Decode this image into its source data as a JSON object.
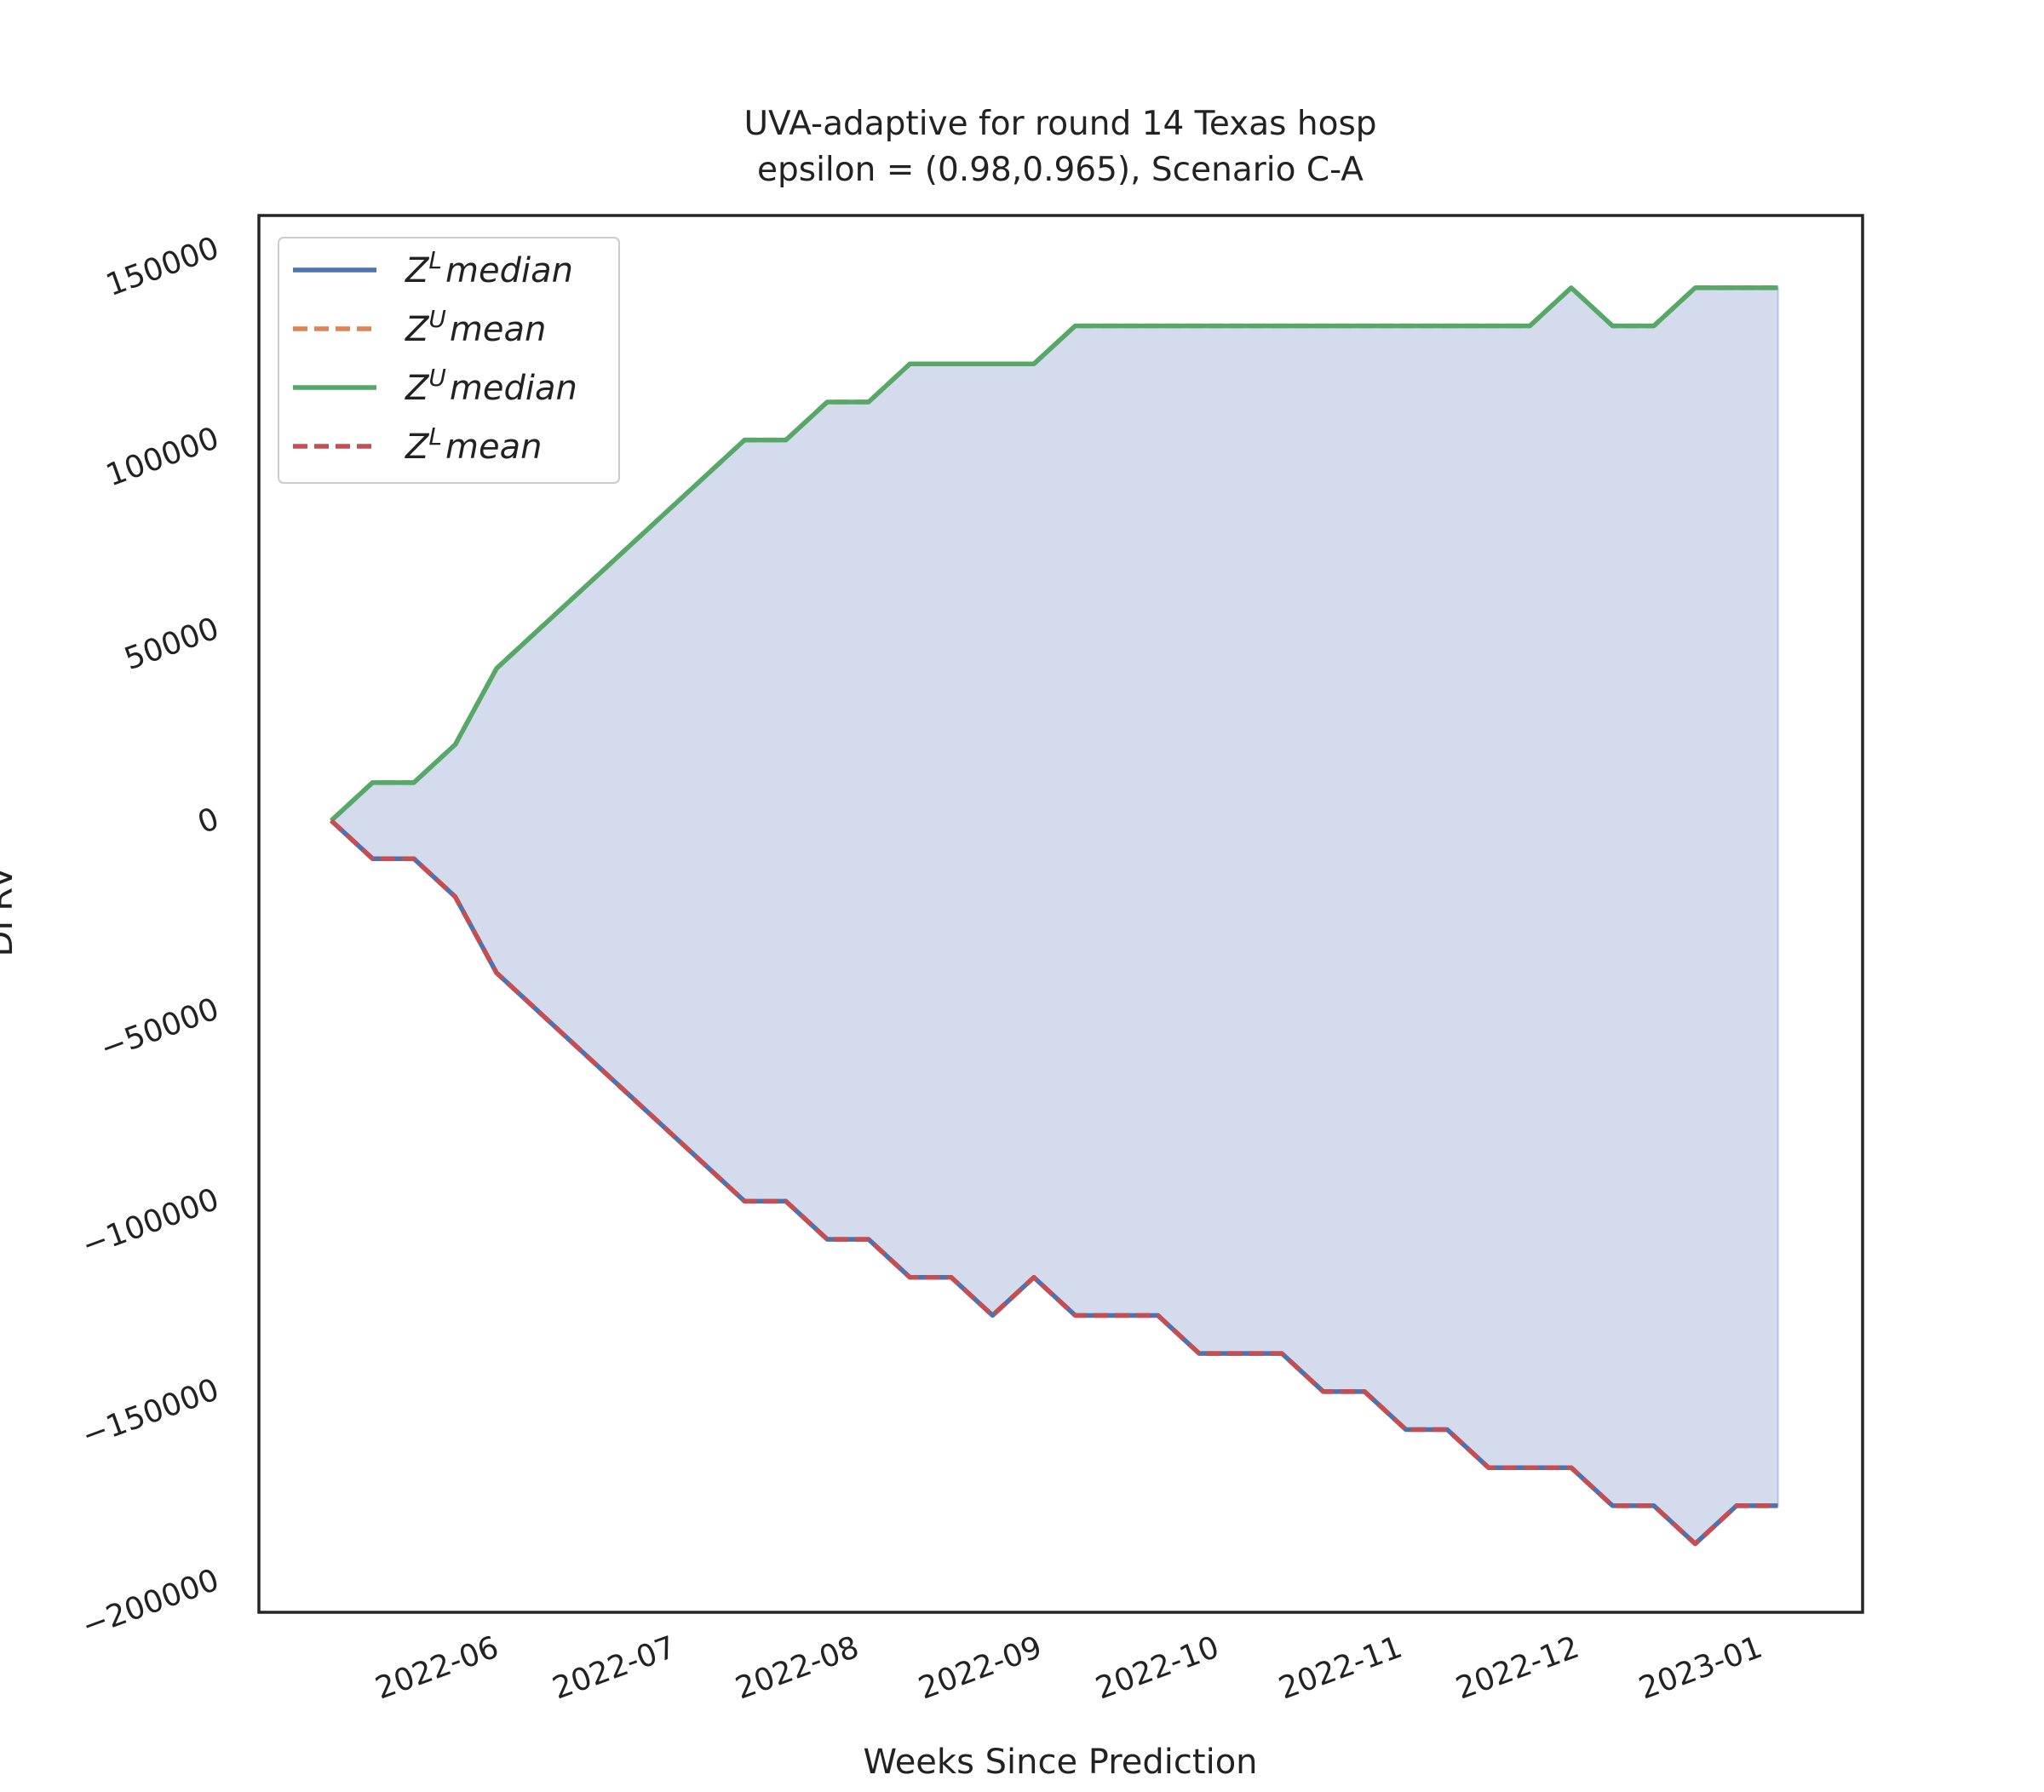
{
  "chart_data": {
    "type": "line",
    "title": "UVA-adaptive for round 14 Texas  hosp",
    "subtitle": "epsilon = (0.98,0.965), Scenario C-A",
    "xlabel": "Weeks Since Prediction",
    "ylabel": "DFRV",
    "x": [
      0,
      1,
      2,
      3,
      4,
      5,
      6,
      7,
      8,
      9,
      10,
      11,
      12,
      13,
      14,
      15,
      16,
      17,
      18,
      19,
      20,
      21,
      22,
      23,
      24,
      25,
      26,
      27,
      28,
      29,
      30,
      31,
      32,
      33,
      34,
      35
    ],
    "xlim": [
      -1.75,
      37.05
    ],
    "xticks": [
      {
        "value": 2.571,
        "label": "2022-06"
      },
      {
        "value": 6.857,
        "label": "2022-07"
      },
      {
        "value": 11.286,
        "label": "2022-08"
      },
      {
        "value": 15.714,
        "label": "2022-09"
      },
      {
        "value": 20,
        "label": "2022-10"
      },
      {
        "value": 24.429,
        "label": "2022-11"
      },
      {
        "value": 28.714,
        "label": "2022-12"
      },
      {
        "value": 33.143,
        "label": "2023-01"
      }
    ],
    "ylim": [
      -208000,
      159000
    ],
    "yticks": [
      {
        "value": -200000,
        "label": "−200000"
      },
      {
        "value": -150000,
        "label": "−150000"
      },
      {
        "value": -100000,
        "label": "−100000"
      },
      {
        "value": -50000,
        "label": "−50000"
      },
      0,
      50000,
      100000,
      150000
    ],
    "grid": false,
    "legend": "upper left",
    "fill_between": {
      "upper": 2,
      "lower": 0,
      "color": "#d3dbec"
    },
    "series": [
      {
        "name": "ZLmedian",
        "color": "#4c72b0",
        "dash": false,
        "values": [
          0,
          -10000,
          -10000,
          -20000,
          -40000,
          -50000,
          -60000,
          -70000,
          -80000,
          -90000,
          -100000,
          -100000,
          -110000,
          -110000,
          -120000,
          -120000,
          -130000,
          -120000,
          -130000,
          -130000,
          -130000,
          -140000,
          -140000,
          -140000,
          -150000,
          -150000,
          -160000,
          -160000,
          -170000,
          -170000,
          -170000,
          -180000,
          -180000,
          -190000,
          -180000,
          -180000
        ]
      },
      {
        "name": "ZUmean",
        "color": "#dd8452",
        "dash": true,
        "values": [
          0,
          10000,
          10000,
          20000,
          40000,
          50000,
          60000,
          70000,
          80000,
          90000,
          100000,
          100000,
          110000,
          110000,
          120000,
          120000,
          120000,
          120000,
          130000,
          130000,
          130000,
          130000,
          130000,
          130000,
          130000,
          130000,
          130000,
          130000,
          130000,
          130000,
          140000,
          130000,
          130000,
          140000,
          140000,
          140000
        ]
      },
      {
        "name": "ZUmedian",
        "color": "#55a868",
        "dash": false,
        "values": [
          0,
          10000,
          10000,
          20000,
          40000,
          50000,
          60000,
          70000,
          80000,
          90000,
          100000,
          100000,
          110000,
          110000,
          120000,
          120000,
          120000,
          120000,
          130000,
          130000,
          130000,
          130000,
          130000,
          130000,
          130000,
          130000,
          130000,
          130000,
          130000,
          130000,
          140000,
          130000,
          130000,
          140000,
          140000,
          140000
        ]
      },
      {
        "name": "ZLmean",
        "color": "#c44e52",
        "dash": true,
        "values": [
          0,
          -10000,
          -10000,
          -20000,
          -40000,
          -50000,
          -60000,
          -70000,
          -80000,
          -90000,
          -100000,
          -100000,
          -110000,
          -110000,
          -120000,
          -120000,
          -130000,
          -120000,
          -130000,
          -130000,
          -130000,
          -140000,
          -140000,
          -140000,
          -150000,
          -150000,
          -160000,
          -160000,
          -170000,
          -170000,
          -170000,
          -180000,
          -180000,
          -190000,
          -180000,
          -180000
        ]
      }
    ]
  }
}
